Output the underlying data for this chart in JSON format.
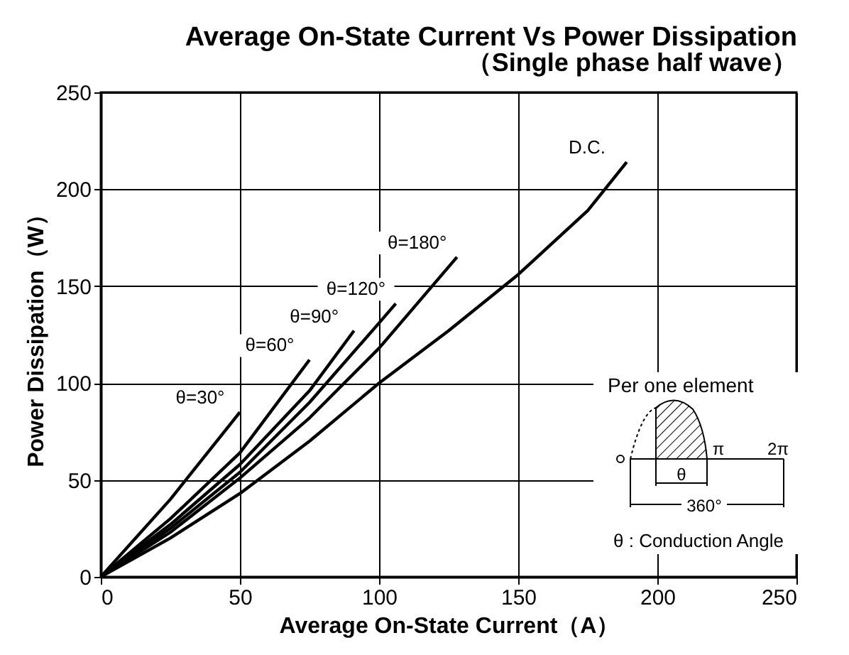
{
  "chart_data": {
    "type": "line",
    "title": "Average On-State Current Vs Power Dissipation",
    "subtitle": "（Single phase half wave）",
    "xlabel": "Average On-State Current（A）",
    "ylabel": "Power Dissipation（W）",
    "xlim": [
      0,
      250
    ],
    "xticks": [
      0,
      50,
      100,
      150,
      200,
      250
    ],
    "ylim": [
      0,
      250
    ],
    "yticks": [
      0,
      50,
      100,
      150,
      200,
      250
    ],
    "grid": true,
    "legend": false,
    "marker": "none",
    "line_style": "solid",
    "annotations": [
      "Per one element",
      "π",
      "2π",
      "θ",
      "360°",
      "θ : Conduction Angle"
    ],
    "series": [
      {
        "name": "θ=30°",
        "color": "#000000",
        "x": [
          0,
          25,
          50
        ],
        "values": [
          0,
          40,
          85
        ]
      },
      {
        "name": "θ=60°",
        "color": "#000000",
        "x": [
          0,
          25,
          50,
          75
        ],
        "values": [
          0,
          30,
          64,
          112
        ]
      },
      {
        "name": "θ=90°",
        "color": "#000000",
        "x": [
          0,
          25,
          50,
          75,
          91
        ],
        "values": [
          0,
          27,
          58,
          96,
          127
        ]
      },
      {
        "name": "θ=120°",
        "color": "#000000",
        "x": [
          0,
          25,
          50,
          75,
          100,
          106
        ],
        "values": [
          0,
          25,
          54,
          90,
          131,
          141
        ]
      },
      {
        "name": "θ=180°",
        "color": "#000000",
        "x": [
          0,
          25,
          50,
          75,
          100,
          128
        ],
        "values": [
          0,
          23,
          51,
          82,
          118,
          165
        ]
      },
      {
        "name": "D.C.",
        "color": "#000000",
        "x": [
          0,
          25,
          50,
          75,
          100,
          125,
          150,
          175,
          189
        ],
        "values": [
          0,
          20,
          43,
          70,
          100,
          127,
          156,
          189,
          214
        ]
      }
    ]
  }
}
